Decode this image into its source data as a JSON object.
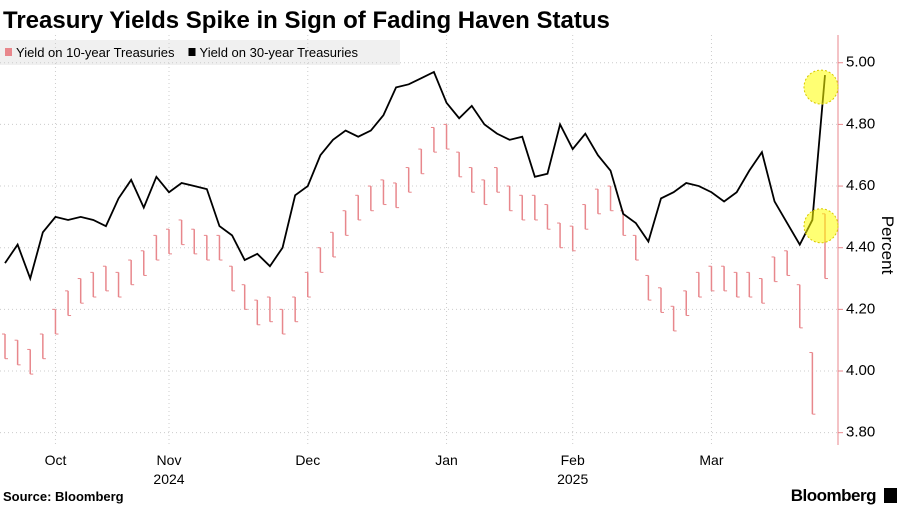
{
  "chart_data": {
    "type": "yield-chart",
    "title": "Treasury Yields Spike in Sign of Fading Haven Status",
    "y_axis_label": "Percent",
    "source": "Source: Bloomberg",
    "brand": "Bloomberg",
    "year_labels": [
      "2024",
      "2025"
    ],
    "categories": [
      null,
      null,
      null,
      null,
      "Oct",
      null,
      null,
      null,
      null,
      null,
      null,
      null,
      null,
      "Nov",
      null,
      null,
      null,
      null,
      null,
      null,
      null,
      null,
      null,
      null,
      "Dec",
      null,
      null,
      null,
      null,
      null,
      null,
      null,
      null,
      null,
      null,
      "Jan",
      null,
      null,
      null,
      null,
      null,
      null,
      null,
      null,
      null,
      "Feb",
      null,
      null,
      null,
      null,
      null,
      null,
      null,
      null,
      null,
      null,
      "Mar",
      null,
      null,
      null,
      null,
      null,
      null,
      null,
      null,
      null
    ],
    "series": [
      {
        "name": "Yield on 10-year Treasuries",
        "color": "#e8878c",
        "style": "range-bars",
        "high": [
          4.12,
          4.1,
          4.07,
          4.12,
          4.2,
          4.26,
          4.3,
          4.32,
          4.34,
          4.32,
          4.36,
          4.39,
          4.44,
          4.46,
          4.49,
          4.46,
          4.44,
          4.44,
          4.34,
          4.28,
          4.23,
          4.24,
          4.2,
          4.24,
          4.32,
          4.4,
          4.45,
          4.52,
          4.57,
          4.6,
          4.62,
          4.61,
          4.66,
          4.72,
          4.79,
          4.8,
          4.71,
          4.66,
          4.62,
          4.66,
          4.6,
          4.57,
          4.57,
          4.54,
          4.48,
          4.47,
          4.54,
          4.59,
          4.6,
          4.52,
          4.44,
          4.31,
          4.27,
          4.21,
          4.26,
          4.32,
          4.34,
          4.34,
          4.32,
          4.32,
          4.3,
          4.37,
          4.39,
          4.28,
          4.06,
          4.51
        ],
        "low": [
          4.04,
          4.02,
          3.99,
          4.04,
          4.12,
          4.18,
          4.22,
          4.24,
          4.26,
          4.24,
          4.28,
          4.31,
          4.36,
          4.38,
          4.41,
          4.38,
          4.36,
          4.36,
          4.26,
          4.2,
          4.15,
          4.16,
          4.12,
          4.16,
          4.24,
          4.32,
          4.37,
          4.44,
          4.49,
          4.52,
          4.54,
          4.53,
          4.58,
          4.64,
          4.71,
          4.72,
          4.63,
          4.58,
          4.54,
          4.58,
          4.52,
          4.49,
          4.49,
          4.46,
          4.4,
          4.39,
          4.46,
          4.51,
          4.52,
          4.44,
          4.36,
          4.23,
          4.19,
          4.13,
          4.18,
          4.24,
          4.26,
          4.26,
          4.24,
          4.24,
          4.22,
          4.29,
          4.31,
          4.14,
          3.86,
          4.3
        ]
      },
      {
        "name": "Yield on 30-year Treasuries",
        "color": "#000000",
        "style": "line",
        "values": [
          4.35,
          4.41,
          4.3,
          4.45,
          4.5,
          4.49,
          4.5,
          4.49,
          4.47,
          4.56,
          4.62,
          4.53,
          4.63,
          4.58,
          4.61,
          4.6,
          4.59,
          4.47,
          4.44,
          4.36,
          4.38,
          4.34,
          4.4,
          4.57,
          4.6,
          4.7,
          4.75,
          4.78,
          4.76,
          4.78,
          4.83,
          4.92,
          4.93,
          4.95,
          4.97,
          4.87,
          4.82,
          4.86,
          4.8,
          4.77,
          4.75,
          4.76,
          4.63,
          4.64,
          4.8,
          4.72,
          4.77,
          4.7,
          4.65,
          4.51,
          4.48,
          4.42,
          4.56,
          4.58,
          4.61,
          4.6,
          4.58,
          4.55,
          4.58,
          4.65,
          4.71,
          4.55,
          4.48,
          4.41,
          4.49,
          4.96
        ]
      }
    ],
    "ylim": [
      3.76,
      5.09
    ],
    "yticks": [
      {
        "value": 3.8,
        "label": "3.80"
      },
      {
        "value": 4,
        "label": "4.00"
      },
      {
        "value": 4.2,
        "label": "4.20"
      },
      {
        "value": 4.4,
        "label": "4.40"
      },
      {
        "value": 4.6,
        "label": "4.60"
      },
      {
        "value": 4.8,
        "label": "4.80"
      },
      {
        "value": 5,
        "label": "5.00"
      }
    ],
    "grid": true,
    "highlight_last": true,
    "axis_color": "#e8878c"
  }
}
